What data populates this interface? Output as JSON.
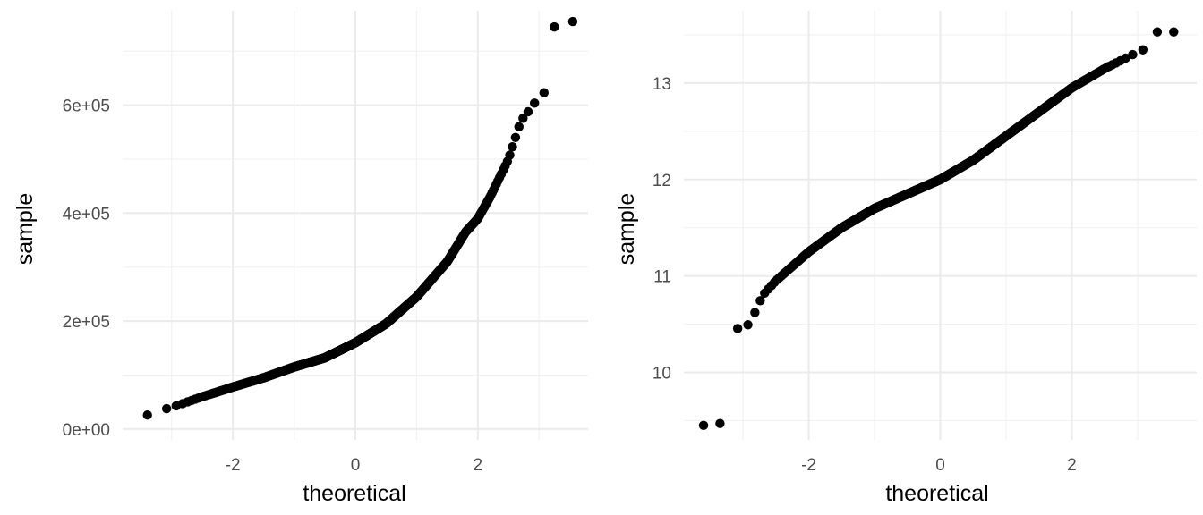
{
  "chart_data": [
    {
      "type": "scatter",
      "title": "",
      "xlabel": "theoretical",
      "ylabel": "sample",
      "xlim": [
        -3.8,
        3.8
      ],
      "ylim": [
        -20000,
        775000
      ],
      "x_ticks": [
        -2,
        0,
        2
      ],
      "x_tick_labels": [
        "-2",
        "0",
        "2"
      ],
      "y_ticks": [
        0,
        200000,
        400000,
        600000
      ],
      "y_tick_labels": [
        "0e+00",
        "2e+05",
        "4e+05",
        "6e+05"
      ],
      "grid": true,
      "legend": "none",
      "point_color": "#000000",
      "anchors": {
        "x": [
          -3.6,
          -3.3,
          -3.0,
          -2.5,
          -2.0,
          -1.5,
          -1.0,
          -0.5,
          0.0,
          0.5,
          1.0,
          1.5,
          1.8,
          2.0,
          2.2,
          2.5,
          2.7,
          3.0,
          3.1
        ],
        "y": [
          13000,
          32000,
          40000,
          60000,
          78000,
          95000,
          115000,
          132000,
          160000,
          195000,
          245000,
          310000,
          365000,
          390000,
          430000,
          500000,
          570000,
          615000,
          625000
        ]
      },
      "outliers": {
        "x": [
          3.25,
          3.55
        ],
        "y": [
          745000,
          755000
        ]
      }
    },
    {
      "type": "scatter",
      "title": "",
      "xlabel": "theoretical",
      "ylabel": "sample",
      "xlim": [
        -3.9,
        3.9
      ],
      "ylim": [
        9.3,
        13.75
      ],
      "x_ticks": [
        -2,
        0,
        2
      ],
      "x_tick_labels": [
        "-2",
        "0",
        "2"
      ],
      "y_ticks": [
        10,
        11,
        12,
        13
      ],
      "y_tick_labels": [
        "10",
        "11",
        "12",
        "13"
      ],
      "grid": true,
      "legend": "none",
      "point_color": "#000000",
      "anchors": {
        "x": [
          -3.1,
          -2.9,
          -2.7,
          -2.5,
          -2.0,
          -1.5,
          -1.0,
          -0.5,
          0.0,
          0.5,
          1.0,
          1.5,
          2.0,
          2.5,
          3.0,
          3.1
        ],
        "y": [
          10.45,
          10.5,
          10.8,
          10.95,
          11.25,
          11.5,
          11.7,
          11.85,
          12.0,
          12.2,
          12.45,
          12.7,
          12.95,
          13.15,
          13.32,
          13.35
        ]
      },
      "outliers": {
        "x": [
          -3.6,
          -3.35,
          3.3,
          3.55
        ],
        "y": [
          9.45,
          9.47,
          13.53,
          13.53
        ]
      }
    }
  ]
}
